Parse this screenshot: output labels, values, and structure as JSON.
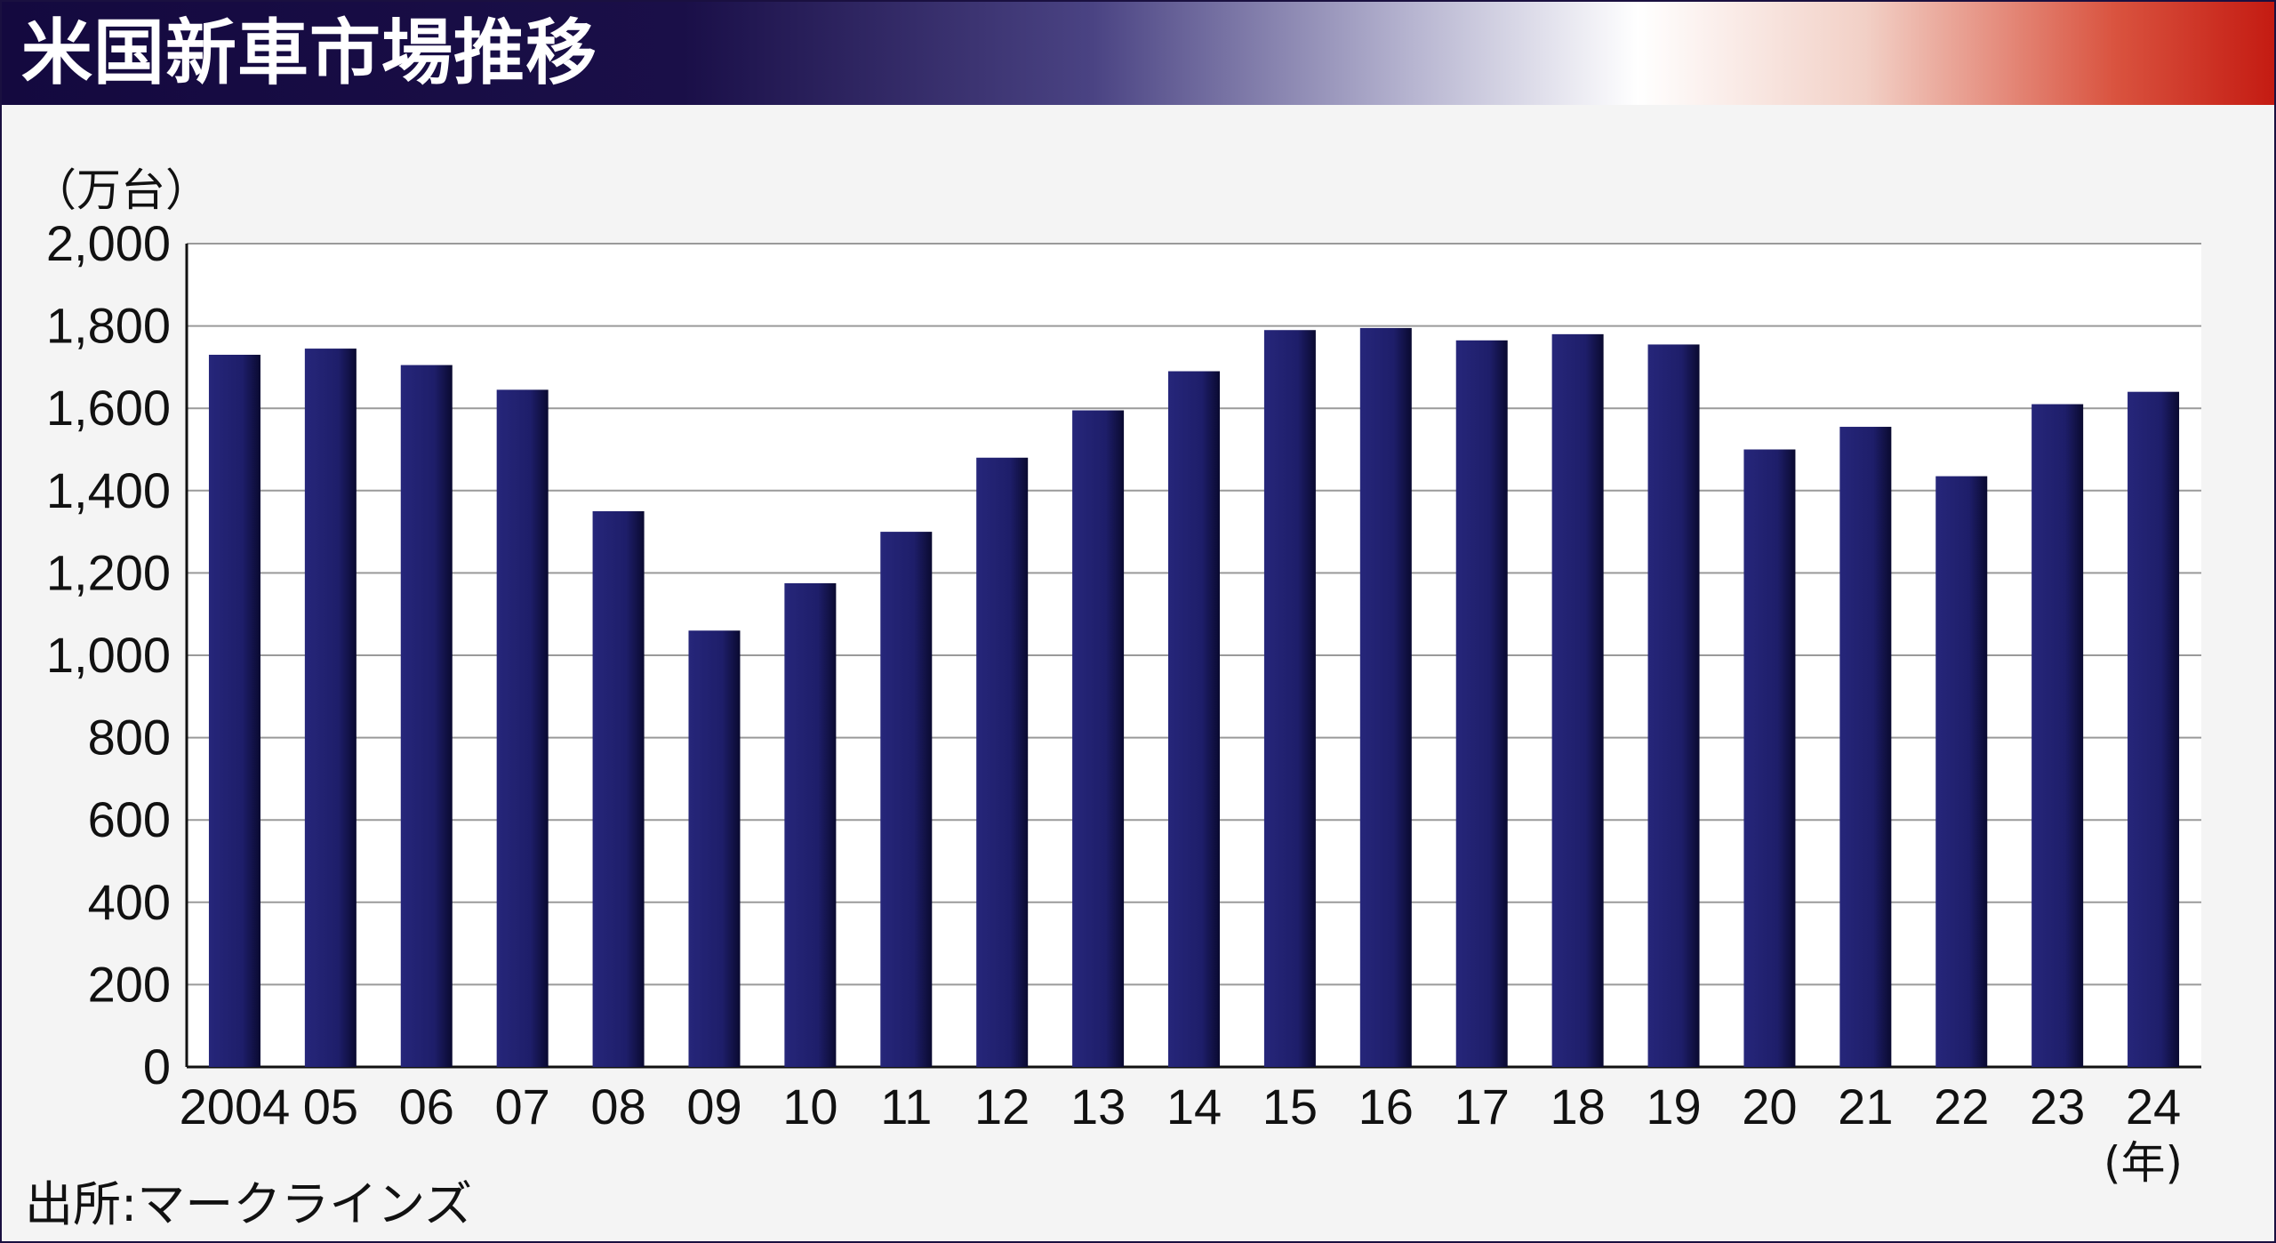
{
  "title": "米国新車市場推移",
  "source": "出所:マークラインズ",
  "colors": {
    "bar": "#1f1f6e",
    "bar_shade": "#0c0c3a",
    "grid": "#9a9a9a",
    "plot_bg": "#ffffff"
  },
  "chart_data": {
    "type": "bar",
    "title": "米国新車市場推移",
    "ylabel": "（万台）",
    "xlabel": "(年)",
    "ylim": [
      0,
      2000
    ],
    "yticks": [
      0,
      200,
      400,
      600,
      800,
      1000,
      1200,
      1400,
      1600,
      1800,
      2000
    ],
    "ytick_labels": [
      "0",
      "200",
      "400",
      "600",
      "800",
      "1,000",
      "1,200",
      "1,400",
      "1,600",
      "1,800",
      "2,000"
    ],
    "grid": true,
    "categories": [
      "2004",
      "05",
      "06",
      "07",
      "08",
      "09",
      "10",
      "11",
      "12",
      "13",
      "14",
      "15",
      "16",
      "17",
      "18",
      "19",
      "20",
      "21",
      "22",
      "23",
      "24"
    ],
    "values": [
      1730,
      1745,
      1705,
      1645,
      1350,
      1060,
      1175,
      1300,
      1480,
      1595,
      1690,
      1790,
      1795,
      1765,
      1780,
      1755,
      1500,
      1555,
      1435,
      1610,
      1640
    ]
  }
}
